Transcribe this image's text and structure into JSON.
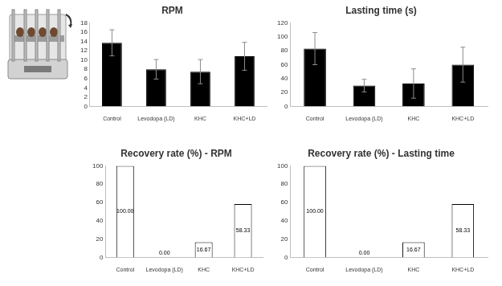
{
  "chart_data": [
    {
      "type": "bar",
      "title": "RPM",
      "categories": [
        "Control",
        "Levodopa (LD)",
        "KHC",
        "KHC+LD"
      ],
      "values": [
        13.7,
        8.0,
        7.5,
        10.8
      ],
      "error": [
        2.8,
        2.1,
        2.6,
        3.0
      ],
      "color": "#000000",
      "ylim": [
        0,
        18
      ],
      "yticks": [
        0,
        2,
        4,
        6,
        8,
        10,
        12,
        14,
        16,
        18
      ],
      "grid": false
    },
    {
      "type": "bar",
      "title": "Lasting time (s)",
      "categories": [
        "Control",
        "Levodopa (LD)",
        "KHC",
        "KHC+LD"
      ],
      "values": [
        83,
        30,
        33,
        60
      ],
      "error": [
        23,
        9,
        21,
        25
      ],
      "color": "#000000",
      "ylim": [
        0,
        120
      ],
      "yticks": [
        0,
        20,
        40,
        60,
        80,
        100,
        120
      ],
      "grid": false
    },
    {
      "type": "bar",
      "title": "Recovery rate (%) - RPM",
      "categories": [
        "Control",
        "Levodopa (LD)",
        "KHC",
        "KHC+LD"
      ],
      "values": [
        100,
        0,
        16.67,
        58.33
      ],
      "value_labels": [
        "100.00",
        "0.00",
        "16.67",
        "58.33"
      ],
      "data_labels": true,
      "color": "#ffffff",
      "ylim": [
        0,
        100
      ],
      "yticks": [
        0,
        20,
        40,
        60,
        80,
        100
      ],
      "grid": false
    },
    {
      "type": "bar",
      "title": "Recovery rate (%) - Lasting time",
      "categories": [
        "Control",
        "Levodopa (LD)",
        "KHC",
        "KHC+LD"
      ],
      "values": [
        100,
        0,
        16.67,
        58.33
      ],
      "value_labels": [
        "100.00",
        "0.00",
        "16.67",
        "58.33"
      ],
      "data_labels": true,
      "color": "#ffffff",
      "ylim": [
        0,
        100
      ],
      "yticks": [
        0,
        20,
        40,
        60,
        80,
        100
      ],
      "grid": false
    }
  ]
}
